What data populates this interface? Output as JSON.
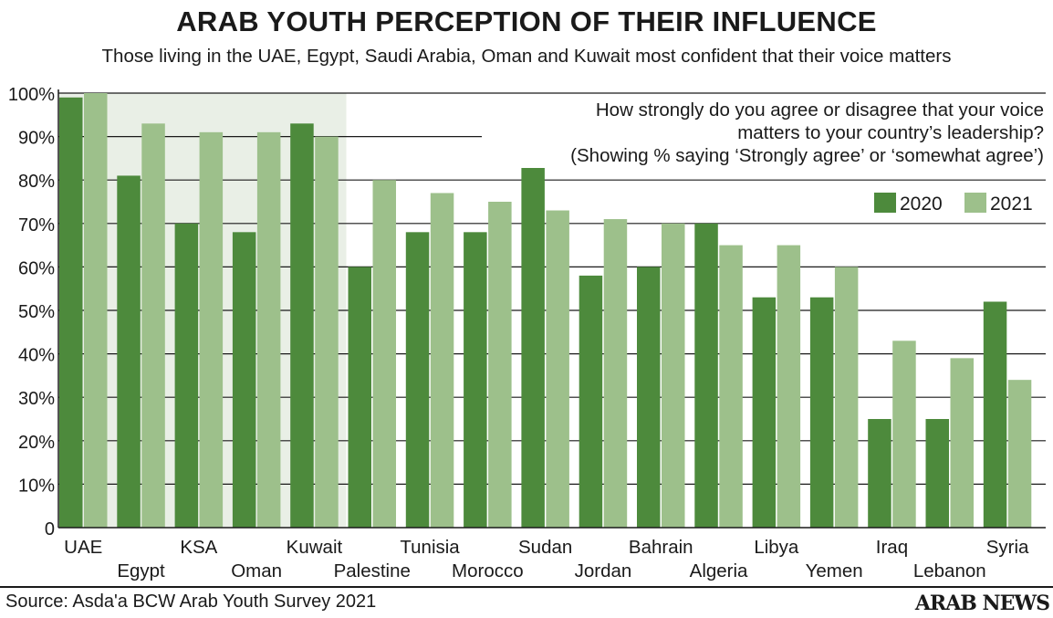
{
  "header": {
    "title": "ARAB YOUTH PERCEPTION OF THEIR INFLUENCE",
    "subtitle": "Those living in the UAE, Egypt, Saudi Arabia, Oman and Kuwait most confident that their voice matters"
  },
  "footer": {
    "source": "Source: Asda'a BCW Arab Youth Survey 2021",
    "brand": "ARAB NEWS"
  },
  "colors": {
    "series_2020": "#4d8a3c",
    "series_2021": "#9dc08b",
    "highlight_bg": "#e9efe6",
    "grid": "#1a1a1a"
  },
  "chart_data": {
    "type": "bar",
    "title": "ARAB YOUTH PERCEPTION OF THEIR INFLUENCE",
    "question": [
      "How strongly do you agree or disagree that your voice",
      "matters to your country’s leadership?",
      "(Showing % saying ‘Strongly agree’ or ‘somewhat agree’)"
    ],
    "categories": [
      "UAE",
      "Egypt",
      "KSA",
      "Oman",
      "Kuwait",
      "Palestine",
      "Tunisia",
      "Morocco",
      "Sudan",
      "Jordan",
      "Bahrain",
      "Algeria",
      "Libya",
      "Yemen",
      "Iraq",
      "Lebanon",
      "Syria"
    ],
    "highlighted_categories": [
      "UAE",
      "Egypt",
      "KSA",
      "Oman",
      "Kuwait"
    ],
    "series": [
      {
        "name": "2020",
        "values": [
          99,
          81,
          70,
          68,
          93,
          60,
          68,
          68,
          83,
          58,
          60,
          70,
          53,
          53,
          25,
          25,
          52
        ]
      },
      {
        "name": "2021",
        "values": [
          100,
          93,
          91,
          91,
          90,
          80,
          77,
          75,
          73,
          71,
          70,
          65,
          65,
          60,
          43,
          39,
          34
        ]
      }
    ],
    "ylim": [
      0,
      100
    ],
    "yticks": [
      "0",
      "10%",
      "20%",
      "30%",
      "40%",
      "50%",
      "60%",
      "70%",
      "80%",
      "90%",
      "100%"
    ],
    "xlabel": "",
    "ylabel": "",
    "legend_position": "top-right"
  }
}
